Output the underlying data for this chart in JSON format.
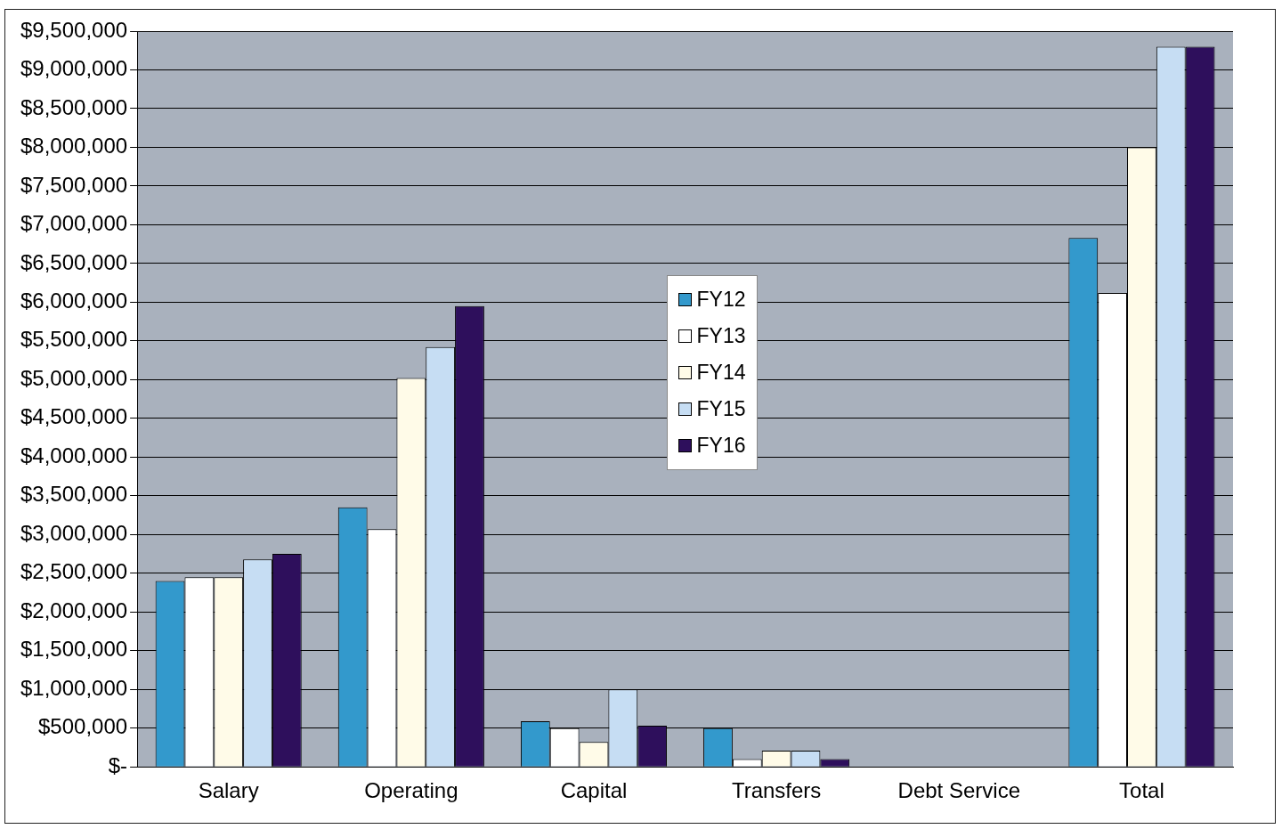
{
  "chart_data": {
    "type": "bar",
    "categories": [
      "Salary",
      "Operating",
      "Capital",
      "Transfers",
      "Debt Service",
      "Total"
    ],
    "series": [
      {
        "name": "FY12",
        "color": "#3399cc",
        "values": [
          2400000,
          3350000,
          590000,
          500000,
          0,
          6830000
        ]
      },
      {
        "name": "FY13",
        "color": "#ffffff",
        "values": [
          2450000,
          3070000,
          500000,
          100000,
          0,
          6120000
        ]
      },
      {
        "name": "FY14",
        "color": "#fffbe8",
        "values": [
          2450000,
          5020000,
          320000,
          210000,
          0,
          8000000
        ]
      },
      {
        "name": "FY15",
        "color": "#c6ddf3",
        "values": [
          2680000,
          5420000,
          1000000,
          210000,
          0,
          9300000
        ]
      },
      {
        "name": "FY16",
        "color": "#2e0f5c",
        "values": [
          2750000,
          5950000,
          530000,
          100000,
          0,
          9300000
        ]
      }
    ],
    "ylim": [
      0,
      9500000
    ],
    "yticks": [
      {
        "value": 0,
        "label": "$-"
      },
      {
        "value": 500000,
        "label": "$500,000"
      },
      {
        "value": 1000000,
        "label": "$1,000,000"
      },
      {
        "value": 1500000,
        "label": "$1,500,000"
      },
      {
        "value": 2000000,
        "label": "$2,000,000"
      },
      {
        "value": 2500000,
        "label": "$2,500,000"
      },
      {
        "value": 3000000,
        "label": "$3,000,000"
      },
      {
        "value": 3500000,
        "label": "$3,500,000"
      },
      {
        "value": 4000000,
        "label": "$4,000,000"
      },
      {
        "value": 4500000,
        "label": "$4,500,000"
      },
      {
        "value": 5000000,
        "label": "$5,000,000"
      },
      {
        "value": 5500000,
        "label": "$5,500,000"
      },
      {
        "value": 6000000,
        "label": "$6,000,000"
      },
      {
        "value": 6500000,
        "label": "$6,500,000"
      },
      {
        "value": 7000000,
        "label": "$7,000,000"
      },
      {
        "value": 7500000,
        "label": "$7,500,000"
      },
      {
        "value": 8000000,
        "label": "$8,000,000"
      },
      {
        "value": 8500000,
        "label": "$8,500,000"
      },
      {
        "value": 9000000,
        "label": "$9,000,000"
      },
      {
        "value": 9500000,
        "label": "$9,500,000"
      }
    ],
    "grid": "y",
    "legend": "center"
  }
}
